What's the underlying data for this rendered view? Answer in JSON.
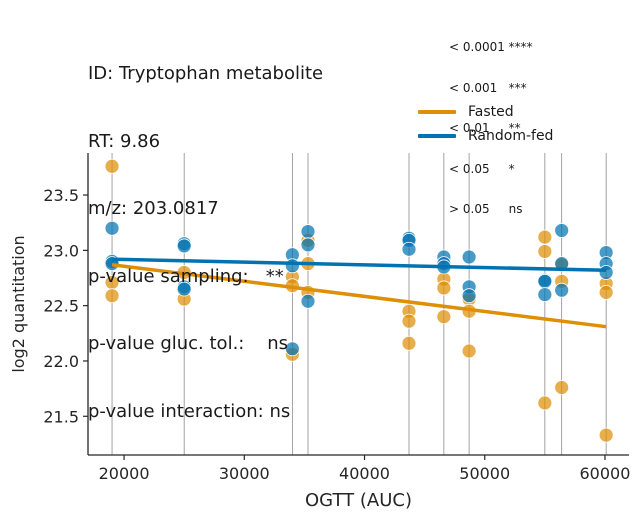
{
  "chart_data": {
    "type": "scatter",
    "info_lines": [
      "ID: Tryptophan metabolite",
      "RT: 9.86",
      "m/z: 203.0817",
      "p-value sampling:   **",
      "p-value gluc. tol.:    ns",
      "p-value interaction: ns"
    ],
    "significance_key": [
      "< 0.0001 ****",
      "< 0.001   ***",
      "< 0.01     **",
      "< 0.05     *",
      "> 0.05     ns"
    ],
    "xlabel": "OGTT (AUC)",
    "ylabel": "log2 quantitation",
    "xlim": [
      17000,
      62000
    ],
    "ylim": [
      21.15,
      23.88
    ],
    "xticks": [
      20000,
      30000,
      40000,
      50000,
      60000
    ],
    "yticks": [
      21.5,
      22.0,
      22.5,
      23.0,
      23.5
    ],
    "vlines": [
      19000,
      25000,
      34000,
      35300,
      43700,
      46600,
      48700,
      55000,
      56400,
      60100
    ],
    "legend_position": "upper-right",
    "series": [
      {
        "name": "Fasted",
        "color": "#de8f05",
        "fit": {
          "x": [
            19000,
            60100
          ],
          "y": [
            22.87,
            22.31
          ]
        },
        "points": [
          {
            "x": 19000,
            "y": 23.76
          },
          {
            "x": 19000,
            "y": 22.71
          },
          {
            "x": 19000,
            "y": 22.59
          },
          {
            "x": 25000,
            "y": 22.8
          },
          {
            "x": 25000,
            "y": 22.56
          },
          {
            "x": 34000,
            "y": 22.76
          },
          {
            "x": 34000,
            "y": 22.68
          },
          {
            "x": 34000,
            "y": 22.06
          },
          {
            "x": 35300,
            "y": 23.09
          },
          {
            "x": 35300,
            "y": 22.88
          },
          {
            "x": 35300,
            "y": 22.62
          },
          {
            "x": 43700,
            "y": 22.45
          },
          {
            "x": 43700,
            "y": 22.36
          },
          {
            "x": 43700,
            "y": 22.16
          },
          {
            "x": 46600,
            "y": 22.74
          },
          {
            "x": 46600,
            "y": 22.66
          },
          {
            "x": 46600,
            "y": 22.4
          },
          {
            "x": 48700,
            "y": 22.56
          },
          {
            "x": 48700,
            "y": 22.45
          },
          {
            "x": 48700,
            "y": 22.09
          },
          {
            "x": 55000,
            "y": 23.12
          },
          {
            "x": 55000,
            "y": 22.99
          },
          {
            "x": 55000,
            "y": 21.62
          },
          {
            "x": 56400,
            "y": 22.87
          },
          {
            "x": 56400,
            "y": 22.72
          },
          {
            "x": 56400,
            "y": 21.76
          },
          {
            "x": 60100,
            "y": 22.7
          },
          {
            "x": 60100,
            "y": 22.62
          },
          {
            "x": 60100,
            "y": 21.33
          }
        ]
      },
      {
        "name": "Random-fed",
        "color": "#0173b2",
        "fit": {
          "x": [
            19000,
            60100
          ],
          "y": [
            22.92,
            22.82
          ]
        },
        "points": [
          {
            "x": 19000,
            "y": 23.2
          },
          {
            "x": 19000,
            "y": 22.9
          },
          {
            "x": 19000,
            "y": 22.88
          },
          {
            "x": 25000,
            "y": 23.06
          },
          {
            "x": 25000,
            "y": 23.04
          },
          {
            "x": 25000,
            "y": 22.67
          },
          {
            "x": 25000,
            "y": 22.65
          },
          {
            "x": 34000,
            "y": 22.96
          },
          {
            "x": 34000,
            "y": 22.86
          },
          {
            "x": 34000,
            "y": 22.11
          },
          {
            "x": 35300,
            "y": 23.17
          },
          {
            "x": 35300,
            "y": 23.05
          },
          {
            "x": 35300,
            "y": 22.54
          },
          {
            "x": 43700,
            "y": 23.11
          },
          {
            "x": 43700,
            "y": 23.09
          },
          {
            "x": 43700,
            "y": 23.01
          },
          {
            "x": 46600,
            "y": 22.94
          },
          {
            "x": 46600,
            "y": 22.88
          },
          {
            "x": 46600,
            "y": 22.85
          },
          {
            "x": 48700,
            "y": 22.94
          },
          {
            "x": 48700,
            "y": 22.67
          },
          {
            "x": 48700,
            "y": 22.59
          },
          {
            "x": 55000,
            "y": 22.73
          },
          {
            "x": 55000,
            "y": 22.72
          },
          {
            "x": 55000,
            "y": 22.6
          },
          {
            "x": 56400,
            "y": 23.18
          },
          {
            "x": 56400,
            "y": 22.88
          },
          {
            "x": 56400,
            "y": 22.64
          },
          {
            "x": 60100,
            "y": 22.98
          },
          {
            "x": 60100,
            "y": 22.88
          },
          {
            "x": 60100,
            "y": 22.8
          }
        ]
      }
    ]
  }
}
